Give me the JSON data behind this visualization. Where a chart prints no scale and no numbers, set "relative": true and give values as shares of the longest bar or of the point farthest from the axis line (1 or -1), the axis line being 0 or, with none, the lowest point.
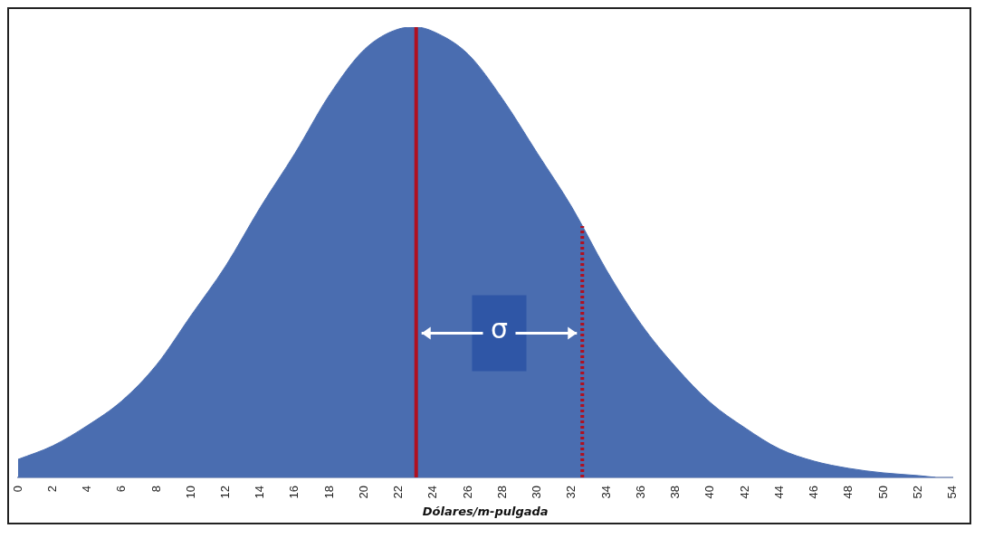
{
  "chart_data": {
    "type": "area",
    "relative": true,
    "xlabel": "Dólares/m-pulgada",
    "x": [
      0,
      2,
      4,
      6,
      8,
      10,
      12,
      14,
      16,
      18,
      20,
      22,
      23,
      24,
      26,
      28,
      30,
      32,
      34,
      36,
      38,
      40,
      42,
      44,
      46,
      48,
      50,
      52,
      53
    ],
    "values": [
      0.04,
      0.07,
      0.115,
      0.17,
      0.25,
      0.36,
      0.47,
      0.6,
      0.72,
      0.85,
      0.95,
      0.996,
      1,
      0.99,
      0.94,
      0.84,
      0.72,
      0.6,
      0.46,
      0.34,
      0.245,
      0.166,
      0.11,
      0.063,
      0.036,
      0.02,
      0.01,
      0.004,
      0
    ],
    "color": "#4a6db0",
    "xlim": [
      0,
      54
    ],
    "xticks": [
      0,
      2,
      4,
      6,
      8,
      10,
      12,
      14,
      16,
      18,
      20,
      22,
      24,
      26,
      28,
      30,
      32,
      34,
      36,
      38,
      40,
      42,
      44,
      46,
      48,
      50,
      52,
      54
    ],
    "ref_lines": [
      {
        "axis": "x",
        "value": 23,
        "color": "#b01020",
        "line_style": "solid"
      },
      {
        "axis": "x",
        "value": 32.6,
        "color": "#b01020",
        "line_style": "dotted"
      }
    ],
    "annotations": [
      "σ"
    ],
    "grid": false,
    "legend": false
  }
}
